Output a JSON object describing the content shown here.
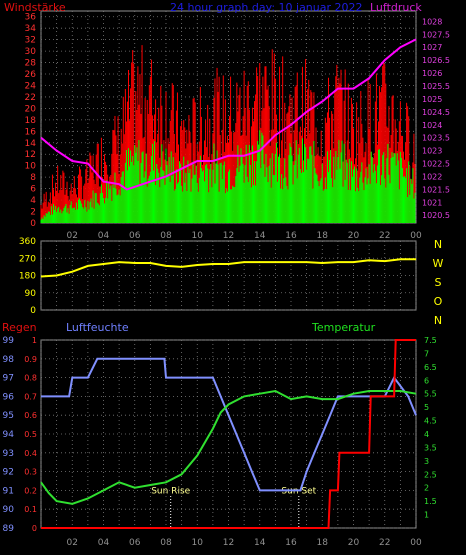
{
  "chart_data": [
    {
      "type": "bar",
      "title": "24 hour graph day: 10 januar 2022",
      "left_label": "Windstärke",
      "right_label": "Luftdruck",
      "colors": {
        "title": "#1e1ee0",
        "left_label": "#e01010",
        "right_label": "#d020d0",
        "gust": "#ff0000",
        "mean": "#00ff00",
        "pressure": "#ff00ff"
      },
      "ylim": [
        0,
        37
      ],
      "yticks_left": [
        "0",
        "2",
        "4",
        "6",
        "8",
        "10",
        "12",
        "14",
        "16",
        "18",
        "20",
        "22",
        "24",
        "26",
        "28",
        "30",
        "32",
        "34",
        "36"
      ],
      "y2lim": [
        1020.2,
        1028.4
      ],
      "yticks_right": [
        "1020.5",
        "1021",
        "1021.5",
        "1022",
        "1022.5",
        "1023",
        "1023.5",
        "1024",
        "1024.5",
        "1025",
        "1025.5",
        "1026",
        "1026.5",
        "1027",
        "1027.5",
        "1028"
      ],
      "xticks": [
        "02",
        "04",
        "06",
        "08",
        "10",
        "12",
        "14",
        "16",
        "18",
        "20",
        "22",
        "00"
      ],
      "grid": true,
      "series": [
        {
          "name": "Windstärke (Böen)",
          "x": [
            0,
            1,
            2,
            3,
            4,
            5,
            6,
            7,
            8,
            9,
            10,
            11,
            12,
            13,
            14,
            15,
            16,
            17,
            18,
            19,
            20,
            21,
            22,
            23,
            24
          ],
          "values": [
            3,
            7,
            6,
            8,
            12,
            14,
            22,
            21,
            19,
            15,
            16,
            19,
            18,
            20,
            22,
            21,
            19,
            20,
            16,
            21,
            16,
            18,
            20,
            17,
            12
          ]
        },
        {
          "name": "Windstärke (Mittel)",
          "x": [
            0,
            1,
            2,
            3,
            4,
            5,
            6,
            7,
            8,
            9,
            10,
            11,
            12,
            13,
            14,
            15,
            16,
            17,
            18,
            19,
            20,
            21,
            22,
            23,
            24
          ],
          "values": [
            1,
            3,
            3,
            4,
            6,
            9,
            12,
            12,
            11,
            9,
            10,
            11,
            10,
            12,
            13,
            12,
            11,
            12,
            10,
            12,
            9,
            10,
            12,
            10,
            7
          ]
        },
        {
          "name": "Luftdruck",
          "x": [
            0,
            1,
            2,
            3,
            4,
            5,
            5.5,
            6,
            7,
            8,
            9,
            10,
            11,
            12,
            13,
            14,
            15,
            16,
            17,
            18,
            19,
            20,
            21,
            22,
            23,
            24
          ],
          "values": [
            1023.5,
            1023.0,
            1022.6,
            1022.5,
            1021.8,
            1021.7,
            1021.5,
            1021.6,
            1021.8,
            1022.0,
            1022.3,
            1022.6,
            1022.6,
            1022.8,
            1022.8,
            1023.0,
            1023.6,
            1024.0,
            1024.5,
            1024.9,
            1025.4,
            1025.4,
            1025.8,
            1026.5,
            1027.0,
            1027.3
          ]
        }
      ]
    },
    {
      "type": "line",
      "right_labels": [
        "N",
        "W",
        "S",
        "O",
        "N"
      ],
      "colors": {
        "line": "#ffff00",
        "right_labels": "#ffff00"
      },
      "ylim": [
        0,
        360
      ],
      "yticks_left": [
        "0",
        "90",
        "180",
        "270",
        "360"
      ],
      "grid": true,
      "series": [
        {
          "name": "Windrichtung",
          "x": [
            0,
            1,
            2,
            3,
            4,
            5,
            6,
            7,
            8,
            9,
            10,
            11,
            12,
            13,
            14,
            15,
            16,
            17,
            18,
            19,
            20,
            21,
            22,
            23,
            24
          ],
          "values": [
            175,
            180,
            200,
            230,
            240,
            250,
            245,
            245,
            230,
            225,
            235,
            240,
            240,
            250,
            250,
            250,
            250,
            250,
            245,
            250,
            250,
            260,
            255,
            265,
            265
          ]
        }
      ]
    },
    {
      "type": "line",
      "left_label": "Regen",
      "mid_label": "Luftfeuchte",
      "right_label": "Temperatur",
      "colors": {
        "left_label": "#e01010",
        "mid_label": "#7080ff",
        "right_label": "#20e020",
        "rain": "#ff0000",
        "humidity": "#8090ff",
        "temp": "#30e030",
        "annotation": "#ffffff"
      },
      "ylim": [
        89,
        99
      ],
      "yticks_left": [
        "89",
        "90",
        "91",
        "92",
        "93",
        "94",
        "95",
        "96",
        "97",
        "98",
        "99"
      ],
      "yticks_rain": [
        "0",
        "0.1",
        "0.2",
        "0.3",
        "0.4",
        "0.5",
        "0.6",
        "0.7",
        "0.8",
        "0.9",
        "1"
      ],
      "rain_lim": [
        0,
        1
      ],
      "temp_lim": [
        0.5,
        7.5
      ],
      "yticks_right": [
        "1",
        "1.5",
        "2",
        "2.5",
        "3",
        "3.5",
        "4",
        "4.5",
        "5",
        "5.5",
        "6",
        "6.5",
        "7",
        "7.5"
      ],
      "xticks": [
        "02",
        "04",
        "06",
        "08",
        "10",
        "12",
        "14",
        "16",
        "18",
        "20",
        "22",
        "00"
      ],
      "grid": true,
      "annotations": [
        {
          "label": "Sun Rise",
          "x": 8.3
        },
        {
          "label": "Sun Set",
          "x": 16.5
        }
      ],
      "series": [
        {
          "name": "Luftfeuchte",
          "x": [
            0,
            1,
            1.8,
            2,
            3,
            3.6,
            4,
            6,
            7.9,
            8,
            9,
            10,
            11,
            11.5,
            12,
            12.5,
            13,
            13.5,
            14,
            15,
            15.2,
            16,
            16.6,
            17,
            17.5,
            18,
            18.5,
            19,
            19.5,
            20,
            21,
            22,
            22.6,
            23.5,
            24
          ],
          "values": [
            96,
            96,
            96,
            97,
            97,
            98,
            98,
            98,
            98,
            97,
            97,
            97,
            97,
            96,
            95,
            94,
            93,
            92,
            91,
            91,
            91,
            91,
            91,
            92,
            93,
            94,
            95,
            96,
            96,
            96,
            96,
            96,
            97,
            96,
            95
          ]
        },
        {
          "name": "Temperatur",
          "x": [
            0,
            0.5,
            1,
            2,
            3,
            4,
            5,
            6,
            7,
            8,
            9,
            10,
            11,
            11.5,
            12,
            13,
            14,
            15,
            16,
            17,
            18,
            19,
            20,
            21,
            22,
            23,
            24
          ],
          "values": [
            2.2,
            1.8,
            1.5,
            1.4,
            1.6,
            1.9,
            2.2,
            2.0,
            2.1,
            2.2,
            2.5,
            3.2,
            4.2,
            4.8,
            5.1,
            5.4,
            5.5,
            5.6,
            5.3,
            5.4,
            5.3,
            5.3,
            5.5,
            5.6,
            5.6,
            5.6,
            5.5
          ]
        },
        {
          "name": "Regen",
          "x": [
            0,
            18.4,
            18.5,
            19.0,
            19.1,
            21.0,
            21.1,
            22.6,
            22.7,
            24
          ],
          "values": [
            0,
            0,
            0.2,
            0.2,
            0.4,
            0.4,
            0.7,
            0.7,
            1.0,
            1.0
          ]
        }
      ]
    }
  ]
}
